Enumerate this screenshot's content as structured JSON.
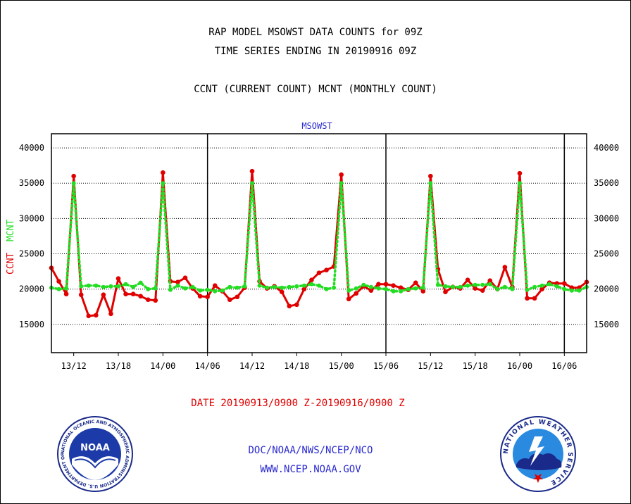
{
  "header": {
    "line1": "RAP MODEL MSOWST DATA COUNTS for 09Z",
    "line2": "TIME SERIES ENDING IN 20190916 09Z",
    "line3": "CCNT (CURRENT COUNT) MCNT (MONTHLY COUNT)"
  },
  "footer": {
    "date_range": "DATE 20190913/0900 Z-20190916/0900 Z",
    "org": "DOC/NOAA/NWS/NCEP/NCO",
    "url": "WWW.NCEP.NOAA.GOV"
  },
  "logos": {
    "noaa_text": "NOAA",
    "noaa_ring": "NATIONAL OCEANIC AND ATMOSPHERIC ADMINISTRATION U.S. DEPARTMENT OF COMMERCE",
    "nws_ring": "NATIONAL WEATHER SERVICE"
  },
  "chart_data": {
    "type": "line",
    "title": "MSOWST",
    "ylabel_parts": [
      "CCNT",
      "MCNT"
    ],
    "xlim": [
      0,
      72
    ],
    "ylim": [
      11000,
      42000
    ],
    "yticks": [
      15000,
      20000,
      25000,
      30000,
      35000,
      40000
    ],
    "ytick_labels": [
      "15000",
      "20000",
      "25000",
      "30000",
      "35000",
      "40000"
    ],
    "xticks": [
      3,
      9,
      15,
      21,
      27,
      33,
      39,
      45,
      51,
      57,
      63,
      69
    ],
    "xtick_labels": [
      "13/12",
      "13/18",
      "14/00",
      "14/06",
      "14/12",
      "14/18",
      "15/00",
      "15/06",
      "15/12",
      "15/18",
      "16/00",
      "16/06"
    ],
    "vlines": [
      21,
      45,
      69
    ],
    "grid": true,
    "series": [
      {
        "name": "CCNT",
        "color": "#e00000",
        "x": [
          0,
          1,
          2,
          3,
          4,
          5,
          6,
          7,
          8,
          9,
          10,
          11,
          12,
          13,
          14,
          15,
          16,
          17,
          18,
          19,
          20,
          21,
          22,
          23,
          24,
          25,
          26,
          27,
          28,
          29,
          30,
          31,
          32,
          33,
          34,
          35,
          36,
          37,
          38,
          39,
          40,
          41,
          42,
          43,
          44,
          45,
          46,
          47,
          48,
          49,
          50,
          51,
          52,
          53,
          54,
          55,
          56,
          57,
          58,
          59,
          60,
          61,
          62,
          63,
          64,
          65,
          66,
          67,
          68,
          69,
          70,
          71,
          72
        ],
        "values": [
          23000,
          21100,
          19300,
          36000,
          19200,
          16200,
          16300,
          19200,
          16500,
          21500,
          19300,
          19300,
          19000,
          18500,
          18400,
          36500,
          21100,
          21000,
          21600,
          20100,
          19000,
          18900,
          20500,
          19700,
          18500,
          18900,
          20200,
          36700,
          21100,
          20100,
          20400,
          19600,
          17600,
          17800,
          20000,
          21300,
          22300,
          22700,
          23200,
          36200,
          18600,
          19400,
          20400,
          19800,
          20700,
          20700,
          20500,
          20200,
          19900,
          20900,
          19700,
          36000,
          22800,
          19600,
          20300,
          20100,
          21300,
          20100,
          19800,
          21200,
          20000,
          23100,
          20300,
          36400,
          18700,
          18700,
          20000,
          20900,
          20800,
          20800,
          20200,
          20200,
          21000
        ]
      },
      {
        "name": "MCNT",
        "color": "#22dd22",
        "x": [
          0,
          1,
          2,
          3,
          4,
          5,
          6,
          7,
          8,
          9,
          10,
          11,
          12,
          13,
          14,
          15,
          16,
          17,
          18,
          19,
          20,
          21,
          22,
          23,
          24,
          25,
          26,
          27,
          28,
          29,
          30,
          31,
          32,
          33,
          34,
          35,
          36,
          37,
          38,
          39,
          40,
          41,
          42,
          43,
          44,
          45,
          46,
          47,
          48,
          49,
          50,
          51,
          52,
          53,
          54,
          55,
          56,
          57,
          58,
          59,
          60,
          61,
          62,
          63,
          64,
          65,
          66,
          67,
          68,
          69,
          70,
          71,
          72
        ],
        "values": [
          20200,
          20000,
          20100,
          35000,
          20400,
          20500,
          20500,
          20300,
          20400,
          20400,
          20700,
          20300,
          20900,
          20000,
          20100,
          35000,
          19900,
          20500,
          20100,
          20300,
          19800,
          19900,
          19700,
          19800,
          20300,
          20200,
          20400,
          35000,
          20500,
          20200,
          20300,
          20200,
          20300,
          20400,
          20500,
          20700,
          20500,
          20000,
          20200,
          35000,
          19800,
          20100,
          20600,
          20300,
          20100,
          20000,
          19700,
          19700,
          20000,
          20100,
          20200,
          35000,
          20600,
          20400,
          20300,
          20300,
          20500,
          20600,
          20600,
          20700,
          20000,
          20300,
          20000,
          35000,
          19900,
          20300,
          20500,
          20700,
          20400,
          20000,
          19800,
          19800,
          20300
        ]
      }
    ]
  }
}
